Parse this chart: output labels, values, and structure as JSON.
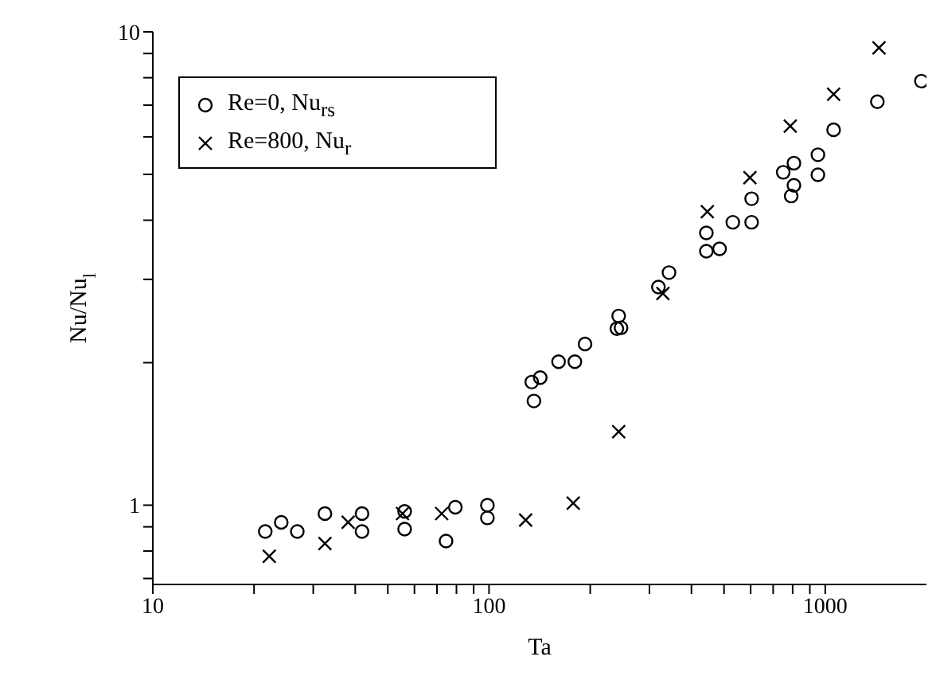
{
  "chart_data": {
    "type": "scatter",
    "xlabel": "Ta",
    "ylabel": "Nu/Nu$_{l}$",
    "log": "xy",
    "xlim": [
      10,
      2000
    ],
    "ylim": [
      0.68,
      10
    ],
    "xticks": [
      10,
      {
        "value": 20,
        "label": null
      },
      {
        "value": 30,
        "label": null
      },
      {
        "value": 40,
        "label": null
      },
      {
        "value": 50,
        "label": null
      },
      {
        "value": 60,
        "label": null
      },
      {
        "value": 70,
        "label": null
      },
      {
        "value": 80,
        "label": null
      },
      {
        "value": 90,
        "label": null
      },
      100,
      {
        "value": 200,
        "label": null
      },
      {
        "value": 300,
        "label": null
      },
      {
        "value": 400,
        "label": null
      },
      {
        "value": 500,
        "label": null
      },
      {
        "value": 600,
        "label": null
      },
      {
        "value": 700,
        "label": null
      },
      {
        "value": 800,
        "label": null
      },
      {
        "value": 900,
        "label": null
      },
      1000
    ],
    "yticks": [
      {
        "value": 0.7,
        "label": null
      },
      {
        "value": 0.8,
        "label": null
      },
      {
        "value": 0.9,
        "label": null
      },
      1,
      {
        "value": 2,
        "label": null
      },
      {
        "value": 3,
        "label": null
      },
      {
        "value": 4,
        "label": null
      },
      {
        "value": 5,
        "label": null
      },
      {
        "value": 6,
        "label": null
      },
      {
        "value": 7,
        "label": null
      },
      {
        "value": 8,
        "label": null
      },
      {
        "value": 9,
        "label": null
      },
      10
    ],
    "legend": "top left",
    "series": [
      {
        "name": "Re=0, Nu$_{rs}$",
        "color": "#000000",
        "marker": "circle",
        "x": [
          21.6,
          24.1,
          26.9,
          32.5,
          41.9,
          41.9,
          56.1,
          56.1,
          79.4,
          74.5,
          98.9,
          98.9,
          136,
          134,
          142,
          161,
          180,
          193,
          243,
          240,
          247,
          319,
          343,
          443,
          485,
          443,
          531,
          604,
          604,
          792,
          807,
          750,
          807,
          951,
          951,
          1059,
          1429,
          1932
        ],
        "values": [
          0.88,
          0.92,
          0.88,
          0.96,
          0.96,
          0.88,
          0.97,
          0.89,
          0.99,
          0.84,
          1.0,
          0.94,
          1.66,
          1.82,
          1.86,
          2.01,
          2.01,
          2.19,
          2.51,
          2.36,
          2.37,
          2.89,
          3.1,
          3.44,
          3.48,
          3.76,
          3.96,
          3.96,
          4.44,
          4.5,
          4.74,
          5.05,
          5.28,
          4.99,
          5.5,
          6.21,
          7.12,
          7.87
        ]
      },
      {
        "name": "Re=800, Nu$_{r}$",
        "color": "#000000",
        "marker": "cross",
        "x": [
          22.2,
          32.5,
          38.1,
          55.3,
          72.3,
          128.5,
          178,
          243,
          329,
          446,
          597,
          787,
          1059,
          1445
        ],
        "values": [
          0.78,
          0.83,
          0.92,
          0.96,
          0.96,
          0.93,
          1.01,
          1.43,
          2.8,
          4.17,
          4.92,
          6.32,
          7.38,
          9.25
        ]
      }
    ]
  }
}
